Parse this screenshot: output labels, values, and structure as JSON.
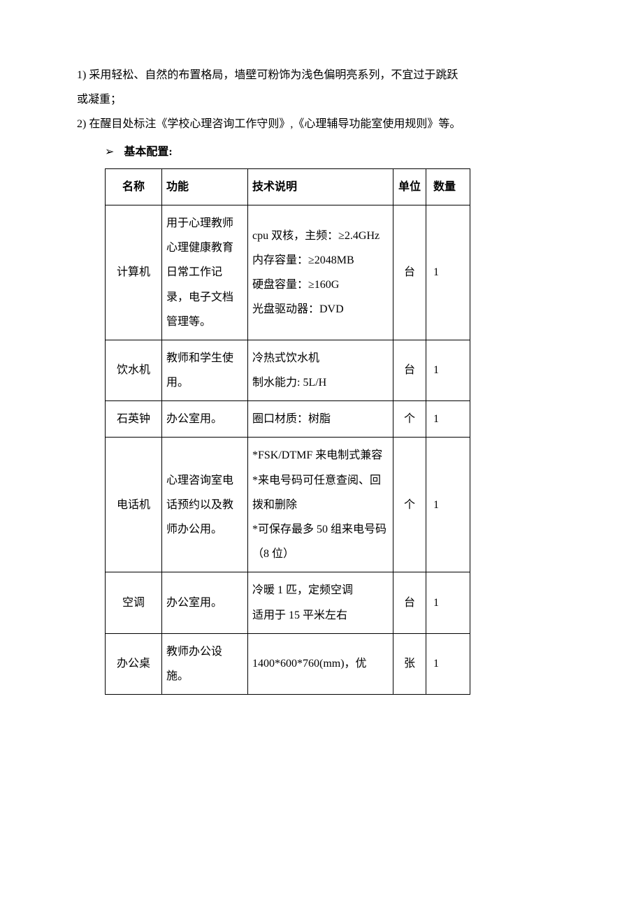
{
  "paragraphs": {
    "p1a": "1)  采用轻松、自然的布置格局，墙壁可粉饰为浅色偏明亮系列，不宜过于跳跃",
    "p1b": "或凝重；",
    "p2": "2)  在醒目处标注《学校心理咨询工作守则》,《心理辅导功能室使用规则》等。"
  },
  "bullet": {
    "arrow": "➢",
    "text": "基本配置:"
  },
  "table": {
    "headers": {
      "name": "名称",
      "func": "功能",
      "spec": "技术说明",
      "unit": "单位",
      "qty": "数量"
    },
    "rows": [
      {
        "name": "计算机",
        "func": "用于心理教师心理健康教育日常工作记录，电子文档管理等。",
        "spec": "cpu 双核，主频：≥2.4GHz\n内存容量：≥2048MB\n硬盘容量：≥160G\n光盘驱动器：DVD",
        "unit": "台",
        "qty": "1"
      },
      {
        "name": "饮水机",
        "func": "教师和学生使用。",
        "spec": "冷热式饮水机\n制水能力: 5L/H",
        "unit": "台",
        "qty": "1"
      },
      {
        "name": "石英钟",
        "func": "办公室用。",
        "spec": "圈口材质：树脂",
        "unit": "个",
        "qty": "1"
      },
      {
        "name": "电话机",
        "func": "心理咨询室电话预约以及教师办公用。",
        "spec": "*FSK/DTMF 来电制式兼容\n*来电号码可任意查阅、回拨和删除\n*可保存最多 50 组来电号码（8 位）",
        "unit": "个",
        "qty": "1"
      },
      {
        "name": "空调",
        "func": "办公室用。",
        "spec": "冷暖 1 匹，定频空调\n适用于 15 平米左右",
        "unit": "台",
        "qty": "1"
      },
      {
        "name": "办公桌",
        "func": "教师办公设施。",
        "spec": "1400*600*760(mm)，优",
        "unit": "张",
        "qty": "1"
      }
    ]
  }
}
